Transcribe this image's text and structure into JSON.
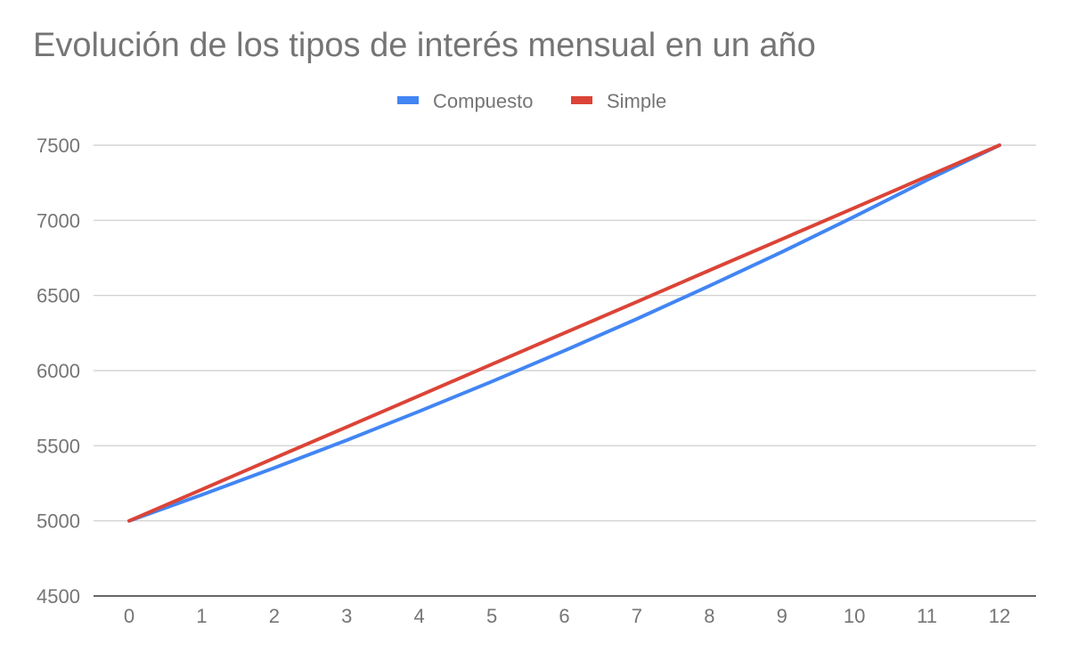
{
  "chart_data": {
    "type": "line",
    "title": "Evolución de los tipos de interés mensual en un año",
    "xlabel": "",
    "ylabel": "",
    "x": [
      0,
      1,
      2,
      3,
      4,
      5,
      6,
      7,
      8,
      9,
      10,
      11,
      12
    ],
    "x_tick_labels": [
      "0",
      "1",
      "2",
      "3",
      "4",
      "5",
      "6",
      "7",
      "8",
      "9",
      "10",
      "11",
      "12"
    ],
    "y_tick_labels": [
      "4500",
      "5000",
      "5500",
      "6000",
      "6500",
      "7000",
      "7500"
    ],
    "y_ticks": [
      4500,
      5000,
      5500,
      6000,
      6500,
      7000,
      7500
    ],
    "xlim": [
      0,
      12
    ],
    "ylim": [
      4500,
      7500
    ],
    "grid": true,
    "legend_position": "top",
    "series": [
      {
        "name": "Compuesto",
        "color": "#4285F4",
        "values": [
          5000,
          5173,
          5352,
          5537,
          5729,
          5927,
          6132,
          6344,
          6564,
          6790,
          7025,
          7268,
          7500
        ]
      },
      {
        "name": "Simple",
        "color": "#DB4437",
        "values": [
          5000,
          5208,
          5417,
          5625,
          5833,
          6042,
          6250,
          6458,
          6667,
          6875,
          7083,
          7292,
          7500
        ]
      }
    ]
  }
}
